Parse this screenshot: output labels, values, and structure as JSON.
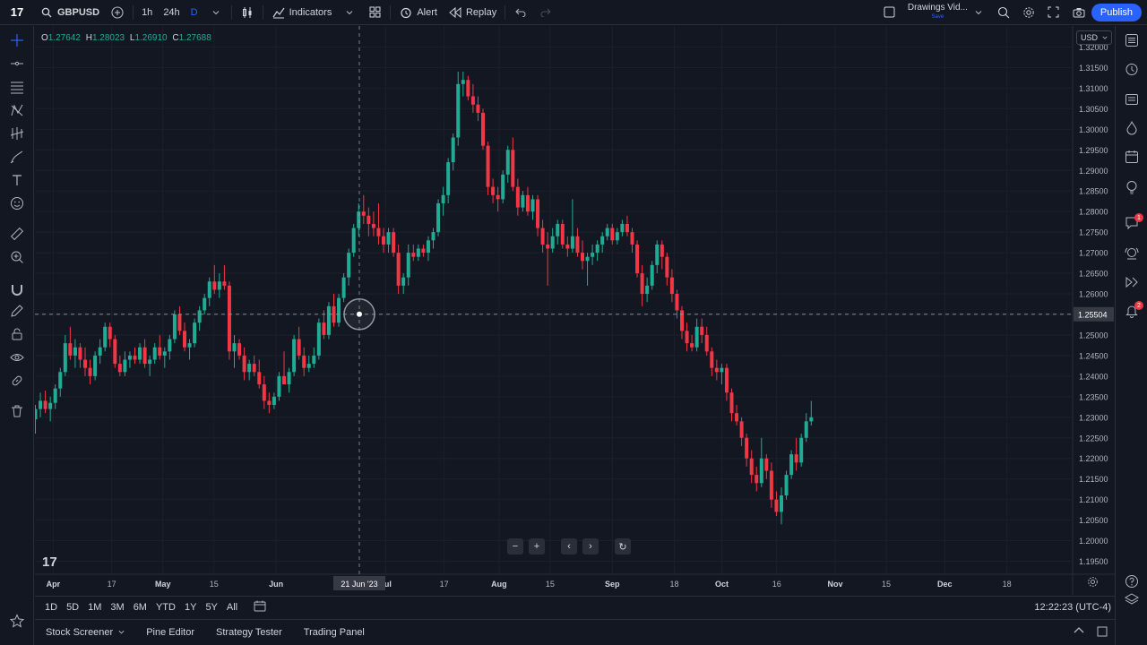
{
  "toolbar": {
    "logo": "17",
    "symbol": "GBPUSD",
    "intervals": [
      "1h",
      "24h",
      "D"
    ],
    "indicators_label": "Indicators",
    "alert_label": "Alert",
    "replay_label": "Replay",
    "drawings_label": "Drawings Vid...",
    "drawings_sub": "Save",
    "publish_label": "Publish",
    "accent": "#2962ff"
  },
  "legend": {
    "o_label": "O",
    "o_value": "1.27642",
    "h_label": "H",
    "h_value": "1.28023",
    "l_label": "L",
    "l_value": "1.26910",
    "c_label": "C",
    "c_value": "1.27688"
  },
  "currency": "USD",
  "crosshair": {
    "price_label": "1.25504",
    "time_label": "21 Jun '23"
  },
  "chart_data": {
    "type": "candlestick",
    "symbol": "GBPUSD",
    "interval": "D",
    "up_color": "#22ab94",
    "down_color": "#f23645",
    "ylim": [
      1.1925,
      1.3225
    ],
    "y_ticks": [
      1.32,
      1.315,
      1.31,
      1.305,
      1.3,
      1.295,
      1.29,
      1.285,
      1.28,
      1.275,
      1.27,
      1.265,
      1.26,
      1.255,
      1.25,
      1.245,
      1.24,
      1.235,
      1.23,
      1.225,
      1.22,
      1.215,
      1.21,
      1.205,
      1.2,
      1.195
    ],
    "y_tick_labels": [
      "1.32000",
      "1.31500",
      "1.31000",
      "1.30500",
      "1.30000",
      "1.29500",
      "1.29000",
      "1.28500",
      "1.28000",
      "1.27500",
      "1.27000",
      "1.26500",
      "1.26000",
      "1.25500",
      "1.25000",
      "1.24500",
      "1.24000",
      "1.23500",
      "1.23000",
      "1.22500",
      "1.22000",
      "1.21500",
      "1.21000",
      "1.20500",
      "1.20000",
      "1.19500"
    ],
    "x_labels": [
      "Apr",
      "17",
      "May",
      "15",
      "Jun",
      "Jul",
      "17",
      "Aug",
      "15",
      "Sep",
      "18",
      "Oct",
      "16",
      "Nov",
      "15",
      "Dec",
      "18"
    ],
    "x_label_days": [
      0,
      16,
      30,
      44,
      61,
      91,
      107,
      122,
      136,
      153,
      170,
      183,
      198,
      214,
      228,
      244,
      261
    ],
    "x_domain_days": [
      -5,
      279
    ],
    "grid": true,
    "candles": [
      [
        -5,
        1.2295,
        1.233,
        1.226,
        1.232
      ],
      [
        -4,
        1.232,
        1.236,
        1.23,
        1.234
      ],
      [
        -3,
        1.234,
        1.2365,
        1.231,
        1.232
      ],
      [
        -2,
        1.232,
        1.235,
        1.229,
        1.2335
      ],
      [
        -1,
        1.2335,
        1.238,
        1.232,
        1.237
      ],
      [
        0,
        1.237,
        1.242,
        1.235,
        1.241
      ],
      [
        1,
        1.241,
        1.25,
        1.24,
        1.248
      ],
      [
        2,
        1.248,
        1.252,
        1.244,
        1.245
      ],
      [
        3,
        1.245,
        1.249,
        1.242,
        1.247
      ],
      [
        4,
        1.247,
        1.248,
        1.242,
        1.244
      ],
      [
        5,
        1.244,
        1.247,
        1.24,
        1.242
      ],
      [
        6,
        1.242,
        1.244,
        1.238,
        1.24
      ],
      [
        7,
        1.24,
        1.246,
        1.239,
        1.245
      ],
      [
        8,
        1.245,
        1.249,
        1.243,
        1.247
      ],
      [
        9,
        1.247,
        1.253,
        1.246,
        1.252
      ],
      [
        10,
        1.252,
        1.253,
        1.247,
        1.249
      ],
      [
        11,
        1.249,
        1.25,
        1.242,
        1.243
      ],
      [
        12,
        1.243,
        1.245,
        1.24,
        1.241
      ],
      [
        13,
        1.241,
        1.246,
        1.24,
        1.244
      ],
      [
        14,
        1.244,
        1.246,
        1.242,
        1.245
      ],
      [
        15,
        1.245,
        1.247,
        1.243,
        1.244
      ],
      [
        16,
        1.244,
        1.248,
        1.243,
        1.247
      ],
      [
        17,
        1.247,
        1.249,
        1.242,
        1.243
      ],
      [
        18,
        1.243,
        1.245,
        1.24,
        1.244
      ],
      [
        19,
        1.244,
        1.248,
        1.243,
        1.247
      ],
      [
        20,
        1.247,
        1.25,
        1.244,
        1.245
      ],
      [
        21,
        1.245,
        1.247,
        1.242,
        1.246
      ],
      [
        22,
        1.246,
        1.25,
        1.244,
        1.249
      ],
      [
        23,
        1.249,
        1.256,
        1.248,
        1.255
      ],
      [
        24,
        1.255,
        1.257,
        1.25,
        1.251
      ],
      [
        25,
        1.251,
        1.253,
        1.246,
        1.247
      ],
      [
        26,
        1.247,
        1.249,
        1.244,
        1.248
      ],
      [
        27,
        1.248,
        1.254,
        1.247,
        1.253
      ],
      [
        28,
        1.253,
        1.257,
        1.251,
        1.256
      ],
      [
        29,
        1.256,
        1.26,
        1.255,
        1.259
      ],
      [
        30,
        1.259,
        1.264,
        1.257,
        1.263
      ],
      [
        31,
        1.263,
        1.267,
        1.26,
        1.261
      ],
      [
        32,
        1.261,
        1.265,
        1.259,
        1.263
      ],
      [
        33,
        1.263,
        1.267,
        1.261,
        1.262
      ],
      [
        34,
        1.262,
        1.263,
        1.244,
        1.246
      ],
      [
        35,
        1.246,
        1.25,
        1.242,
        1.248
      ],
      [
        36,
        1.248,
        1.249,
        1.244,
        1.245
      ],
      [
        37,
        1.245,
        1.247,
        1.239,
        1.241
      ],
      [
        38,
        1.241,
        1.244,
        1.239,
        1.243
      ],
      [
        39,
        1.243,
        1.245,
        1.24,
        1.241
      ],
      [
        40,
        1.241,
        1.244,
        1.237,
        1.238
      ],
      [
        41,
        1.238,
        1.24,
        1.232,
        1.234
      ],
      [
        42,
        1.234,
        1.236,
        1.231,
        1.233
      ],
      [
        43,
        1.233,
        1.236,
        1.232,
        1.235
      ],
      [
        44,
        1.235,
        1.241,
        1.234,
        1.24
      ],
      [
        45,
        1.24,
        1.246,
        1.238,
        1.238
      ],
      [
        46,
        1.238,
        1.242,
        1.236,
        1.241
      ],
      [
        47,
        1.241,
        1.25,
        1.24,
        1.249
      ],
      [
        48,
        1.249,
        1.252,
        1.244,
        1.245
      ],
      [
        49,
        1.245,
        1.247,
        1.24,
        1.242
      ],
      [
        50,
        1.242,
        1.245,
        1.241,
        1.243
      ],
      [
        51,
        1.243,
        1.247,
        1.242,
        1.245
      ],
      [
        52,
        1.245,
        1.254,
        1.244,
        1.253
      ],
      [
        53,
        1.253,
        1.256,
        1.249,
        1.25
      ],
      [
        54,
        1.25,
        1.258,
        1.249,
        1.257
      ],
      [
        55,
        1.257,
        1.26,
        1.252,
        1.253
      ],
      [
        56,
        1.253,
        1.26,
        1.252,
        1.259
      ],
      [
        57,
        1.259,
        1.265,
        1.258,
        1.264
      ],
      [
        58,
        1.264,
        1.271,
        1.262,
        1.27
      ],
      [
        59,
        1.27,
        1.277,
        1.269,
        1.276
      ],
      [
        60,
        1.276,
        1.282,
        1.274,
        1.28
      ],
      [
        61,
        1.28,
        1.284,
        1.277,
        1.279
      ],
      [
        62,
        1.279,
        1.281,
        1.274,
        1.277
      ],
      [
        63,
        1.277,
        1.28,
        1.274,
        1.276
      ],
      [
        64,
        1.276,
        1.282,
        1.272,
        1.274
      ],
      [
        65,
        1.274,
        1.276,
        1.27,
        1.272
      ],
      [
        66,
        1.272,
        1.276,
        1.27,
        1.275
      ],
      [
        67,
        1.275,
        1.276,
        1.269,
        1.27
      ],
      [
        68,
        1.27,
        1.272,
        1.26,
        1.262
      ],
      [
        69,
        1.262,
        1.265,
        1.26,
        1.264
      ],
      [
        70,
        1.264,
        1.272,
        1.262,
        1.27
      ],
      [
        71,
        1.27,
        1.272,
        1.268,
        1.269
      ],
      [
        72,
        1.269,
        1.272,
        1.268,
        1.271
      ],
      [
        73,
        1.271,
        1.272,
        1.269,
        1.27
      ],
      [
        74,
        1.27,
        1.274,
        1.268,
        1.273
      ],
      [
        75,
        1.273,
        1.276,
        1.271,
        1.275
      ],
      [
        76,
        1.275,
        1.283,
        1.274,
        1.282
      ],
      [
        77,
        1.282,
        1.286,
        1.279,
        1.284
      ],
      [
        78,
        1.284,
        1.293,
        1.282,
        1.292
      ],
      [
        79,
        1.292,
        1.299,
        1.29,
        1.298
      ],
      [
        80,
        1.298,
        1.314,
        1.296,
        1.311
      ],
      [
        81,
        1.311,
        1.314,
        1.308,
        1.312
      ],
      [
        82,
        1.312,
        1.313,
        1.307,
        1.308
      ],
      [
        83,
        1.308,
        1.311,
        1.304,
        1.306
      ],
      [
        84,
        1.306,
        1.308,
        1.302,
        1.304
      ],
      [
        85,
        1.304,
        1.305,
        1.295,
        1.296
      ],
      [
        86,
        1.296,
        1.297,
        1.284,
        1.286
      ],
      [
        87,
        1.286,
        1.288,
        1.282,
        1.284
      ],
      [
        88,
        1.284,
        1.286,
        1.28,
        1.283
      ],
      [
        89,
        1.283,
        1.29,
        1.282,
        1.289
      ],
      [
        90,
        1.289,
        1.296,
        1.287,
        1.295
      ],
      [
        91,
        1.295,
        1.298,
        1.285,
        1.286
      ],
      [
        92,
        1.286,
        1.288,
        1.279,
        1.281
      ],
      [
        93,
        1.281,
        1.285,
        1.28,
        1.284
      ],
      [
        94,
        1.284,
        1.286,
        1.279,
        1.28
      ],
      [
        95,
        1.28,
        1.284,
        1.278,
        1.283
      ],
      [
        96,
        1.283,
        1.284,
        1.274,
        1.276
      ],
      [
        97,
        1.276,
        1.278,
        1.27,
        1.272
      ],
      [
        98,
        1.272,
        1.275,
        1.262,
        1.271
      ],
      [
        99,
        1.271,
        1.276,
        1.27,
        1.274
      ],
      [
        100,
        1.274,
        1.278,
        1.272,
        1.277
      ],
      [
        101,
        1.277,
        1.278,
        1.271,
        1.272
      ],
      [
        102,
        1.272,
        1.274,
        1.269,
        1.271
      ],
      [
        103,
        1.271,
        1.283,
        1.27,
        1.274
      ],
      [
        104,
        1.274,
        1.276,
        1.269,
        1.27
      ],
      [
        105,
        1.27,
        1.273,
        1.266,
        1.268
      ],
      [
        106,
        1.268,
        1.27,
        1.262,
        1.269
      ],
      [
        107,
        1.269,
        1.272,
        1.267,
        1.27
      ],
      [
        108,
        1.27,
        1.273,
        1.268,
        1.272
      ],
      [
        109,
        1.272,
        1.275,
        1.27,
        1.274
      ],
      [
        110,
        1.274,
        1.277,
        1.273,
        1.276
      ],
      [
        111,
        1.276,
        1.277,
        1.272,
        1.273
      ],
      [
        112,
        1.273,
        1.276,
        1.272,
        1.275
      ],
      [
        113,
        1.275,
        1.278,
        1.274,
        1.277
      ],
      [
        114,
        1.277,
        1.279,
        1.274,
        1.275
      ],
      [
        115,
        1.275,
        1.276,
        1.27,
        1.272
      ],
      [
        116,
        1.272,
        1.273,
        1.264,
        1.265
      ],
      [
        117,
        1.265,
        1.267,
        1.257,
        1.26
      ],
      [
        118,
        1.26,
        1.264,
        1.258,
        1.262
      ],
      [
        119,
        1.262,
        1.268,
        1.261,
        1.267
      ],
      [
        120,
        1.267,
        1.273,
        1.265,
        1.272
      ],
      [
        121,
        1.272,
        1.273,
        1.266,
        1.269
      ],
      [
        122,
        1.269,
        1.27,
        1.262,
        1.264
      ],
      [
        123,
        1.264,
        1.266,
        1.258,
        1.26
      ],
      [
        124,
        1.26,
        1.261,
        1.254,
        1.256
      ],
      [
        125,
        1.256,
        1.257,
        1.249,
        1.251
      ],
      [
        126,
        1.251,
        1.253,
        1.246,
        1.248
      ],
      [
        127,
        1.248,
        1.25,
        1.246,
        1.247
      ],
      [
        128,
        1.247,
        1.254,
        1.246,
        1.252
      ],
      [
        129,
        1.252,
        1.254,
        1.248,
        1.25
      ],
      [
        130,
        1.25,
        1.252,
        1.245,
        1.246
      ],
      [
        131,
        1.246,
        1.247,
        1.24,
        1.242
      ],
      [
        132,
        1.242,
        1.244,
        1.239,
        1.241
      ],
      [
        133,
        1.241,
        1.243,
        1.238,
        1.242
      ],
      [
        134,
        1.242,
        1.243,
        1.234,
        1.236
      ],
      [
        135,
        1.236,
        1.237,
        1.229,
        1.231
      ],
      [
        136,
        1.231,
        1.233,
        1.228,
        1.229
      ],
      [
        137,
        1.229,
        1.23,
        1.223,
        1.225
      ],
      [
        138,
        1.225,
        1.226,
        1.218,
        1.22
      ],
      [
        139,
        1.22,
        1.222,
        1.214,
        1.216
      ],
      [
        140,
        1.216,
        1.218,
        1.212,
        1.214
      ],
      [
        141,
        1.214,
        1.225,
        1.213,
        1.22
      ],
      [
        142,
        1.22,
        1.221,
        1.215,
        1.217
      ],
      [
        143,
        1.217,
        1.219,
        1.208,
        1.21
      ],
      [
        144,
        1.21,
        1.212,
        1.206,
        1.207
      ],
      [
        145,
        1.207,
        1.213,
        1.204,
        1.211
      ],
      [
        146,
        1.211,
        1.217,
        1.21,
        1.216
      ],
      [
        147,
        1.216,
        1.222,
        1.215,
        1.221
      ],
      [
        148,
        1.221,
        1.225,
        1.217,
        1.219
      ],
      [
        149,
        1.219,
        1.226,
        1.218,
        1.225
      ],
      [
        150,
        1.225,
        1.231,
        1.224,
        1.229
      ],
      [
        151,
        1.229,
        1.234,
        1.228,
        1.23
      ]
    ],
    "candle_day_step": 0.37
  },
  "nav_controls": [
    "−",
    "+",
    "‹",
    "›",
    "↻"
  ],
  "ranges": [
    "1D",
    "5D",
    "1M",
    "3M",
    "6M",
    "YTD",
    "1Y",
    "5Y",
    "All"
  ],
  "clock": "12:22:23 (UTC-4)",
  "bottom_tabs": [
    "Stock Screener",
    "Pine Editor",
    "Strategy Tester",
    "Trading Panel"
  ],
  "icons": {
    "left": [
      "crosshair-icon",
      "horizontal-line-icon",
      "fib-lines-icon",
      "pattern-icon",
      "prediction-icon",
      "brush-icon",
      "text-icon",
      "emoji-icon",
      "ruler-icon",
      "zoom-in-icon",
      "magnet-icon",
      "pencil-lock-icon",
      "lock-icon",
      "eye-icon",
      "link-icon",
      "trash-icon",
      "favorite-star-icon"
    ],
    "right": [
      "watchlist-icon",
      "alerts-clock-icon",
      "data-window-icon",
      "hotlist-icon",
      "calendar-icon",
      "ideas-icon",
      "chat-icon",
      "streams-icon",
      "replay-icon",
      "notifications-icon",
      "help-icon",
      "layers-icon"
    ]
  },
  "badges": {
    "chat": "1",
    "notifications": "2"
  }
}
